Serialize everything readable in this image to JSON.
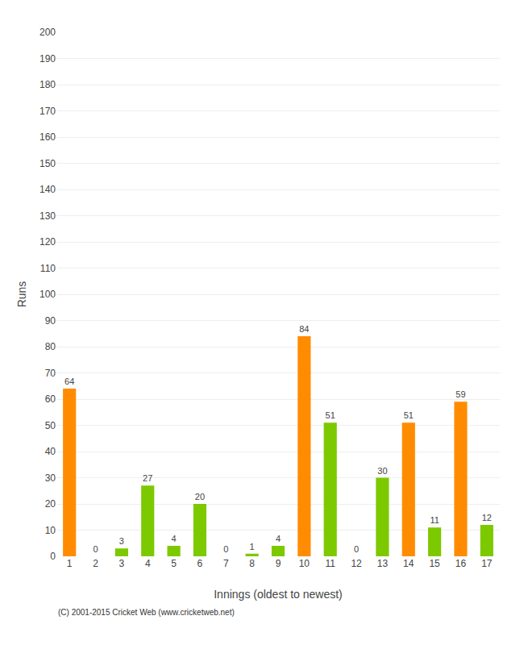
{
  "chart_data": {
    "type": "bar",
    "xlabel": "Innings (oldest to newest)",
    "ylabel": "Runs",
    "categories": [
      "1",
      "2",
      "3",
      "4",
      "5",
      "6",
      "7",
      "8",
      "9",
      "10",
      "11",
      "12",
      "13",
      "14",
      "15",
      "16",
      "17"
    ],
    "values": [
      64,
      0,
      3,
      27,
      4,
      20,
      0,
      1,
      4,
      84,
      51,
      0,
      30,
      51,
      11,
      59,
      12
    ],
    "colors": [
      "#ff8c00",
      "#7dc900",
      "#7dc900",
      "#7dc900",
      "#7dc900",
      "#7dc900",
      "#7dc900",
      "#7dc900",
      "#7dc900",
      "#ff8c00",
      "#7dc900",
      "#7dc900",
      "#7dc900",
      "#ff8c00",
      "#7dc900",
      "#ff8c00",
      "#7dc900"
    ],
    "ylim": [
      0,
      200
    ],
    "yticks": [
      0,
      10,
      20,
      30,
      40,
      50,
      60,
      70,
      80,
      90,
      100,
      110,
      120,
      130,
      140,
      150,
      160,
      170,
      180,
      190,
      200
    ],
    "grid": true,
    "data_labels": true,
    "annotations": [
      "(C) 2001-2015 Cricket Web (www.cricketweb.net)"
    ]
  }
}
